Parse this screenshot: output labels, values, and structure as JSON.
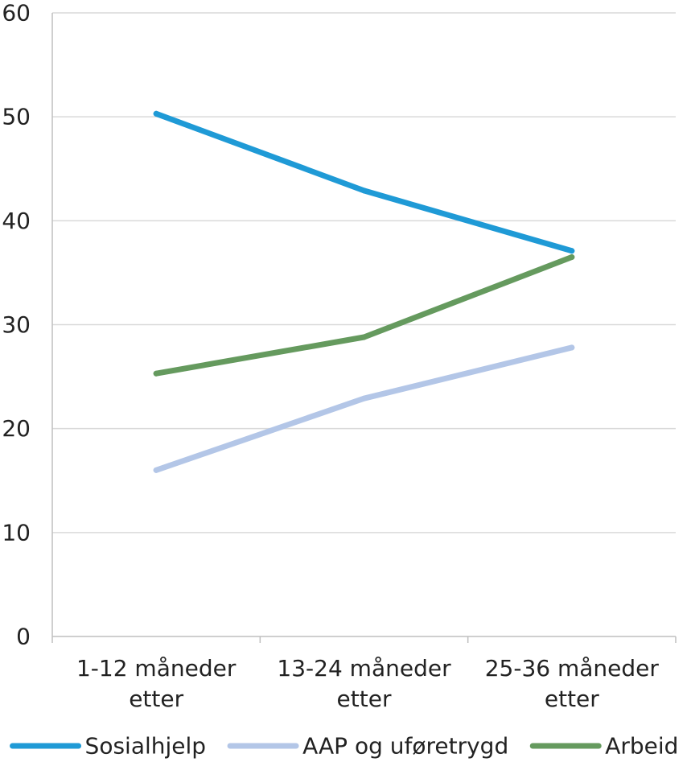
{
  "chart_data": {
    "type": "line",
    "title": "",
    "xlabel": "",
    "ylabel": "",
    "categories": [
      [
        "1-12 måneder",
        "etter"
      ],
      [
        "13-24 måneder",
        "etter"
      ],
      [
        "25-36 måneder",
        "etter"
      ]
    ],
    "ylim": [
      0,
      60
    ],
    "yticks": [
      "0",
      "10",
      "20",
      "30",
      "40",
      "50",
      "60"
    ],
    "grid": true,
    "legend_position": "bottom",
    "series": [
      {
        "name": "Sosialhjelp",
        "color": "#1f9ad6",
        "values": [
          50.3,
          42.9,
          37.1
        ]
      },
      {
        "name": "AAP og uføretrygd",
        "color": "#b3c6e7",
        "values": [
          16.0,
          22.9,
          27.8
        ]
      },
      {
        "name": "Arbeid",
        "color": "#659a5e",
        "values": [
          25.3,
          28.8,
          36.5
        ]
      }
    ]
  }
}
